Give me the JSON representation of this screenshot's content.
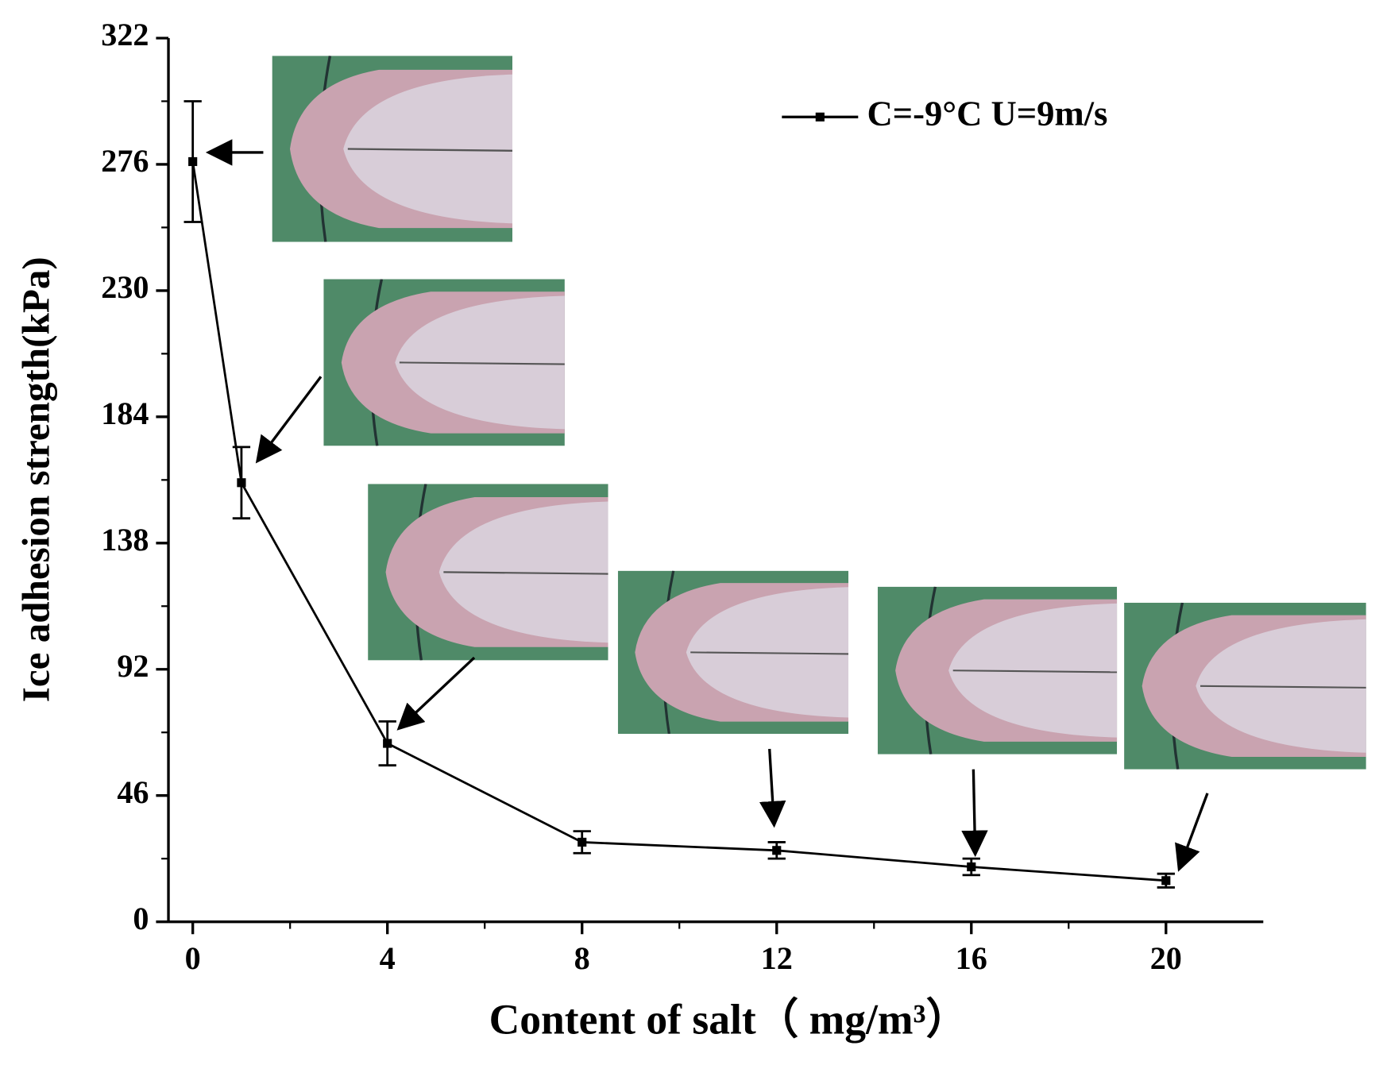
{
  "chart_data": {
    "type": "line",
    "x_label": "Content of salt（ mg/m³）",
    "y_label": "Ice adhesion strength(kPa)",
    "x": [
      0,
      1,
      4,
      8,
      12,
      16,
      20
    ],
    "series": [
      {
        "name": "C=-9°C U=9m/s",
        "color": "#000000",
        "values": [
          277,
          160,
          65,
          29,
          26,
          20,
          15
        ],
        "errors": [
          22,
          13,
          8,
          4,
          3,
          3,
          2.5
        ]
      }
    ],
    "xlim": [
      -0.5,
      22
    ],
    "xticks": [
      0,
      4,
      8,
      12,
      16,
      20
    ],
    "ylim": [
      0,
      322
    ],
    "yticks": [
      0,
      46,
      92,
      138,
      184,
      230,
      276,
      322
    ],
    "legend": "top-right"
  }
}
